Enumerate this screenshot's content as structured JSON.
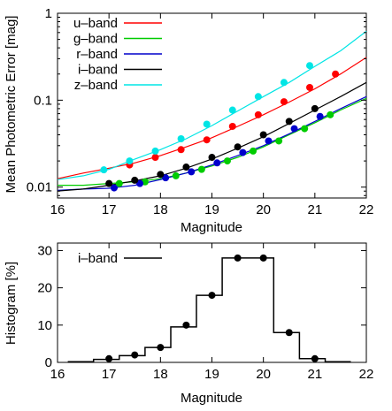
{
  "chart_data": [
    {
      "type": "line",
      "xlabel": "Magnitude",
      "ylabel": "Mean Photometric Error [mag]",
      "yscale": "log",
      "xlim": [
        16,
        22
      ],
      "ylim": [
        0.0075,
        1
      ],
      "xticks": [
        "16",
        "17",
        "18",
        "19",
        "20",
        "21",
        "22"
      ],
      "yticks": [
        {
          "value": 0.01,
          "label": "0.01"
        },
        {
          "value": 0.1,
          "label": "0.1"
        },
        {
          "value": 1,
          "label": "1"
        }
      ],
      "legend_position": "top-left",
      "series": [
        {
          "name": "u–band",
          "color": "#ff0000",
          "curve": [
            [
              16,
              0.0125
            ],
            [
              16.5,
              0.0145
            ],
            [
              17,
              0.0165
            ],
            [
              17.5,
              0.019
            ],
            [
              18,
              0.023
            ],
            [
              18.5,
              0.029
            ],
            [
              19,
              0.037
            ],
            [
              19.5,
              0.05
            ],
            [
              20,
              0.068
            ],
            [
              20.5,
              0.095
            ],
            [
              21,
              0.135
            ],
            [
              21.5,
              0.2
            ],
            [
              22,
              0.31
            ]
          ],
          "points": [
            [
              17.4,
              0.018
            ],
            [
              17.9,
              0.022
            ],
            [
              18.4,
              0.027
            ],
            [
              18.9,
              0.035
            ],
            [
              19.4,
              0.05
            ],
            [
              19.9,
              0.068
            ],
            [
              20.4,
              0.096
            ],
            [
              20.9,
              0.14
            ],
            [
              21.4,
              0.2
            ]
          ]
        },
        {
          "name": "g–band",
          "color": "#00cc00",
          "curve": [
            [
              16,
              0.0105
            ],
            [
              16.5,
              0.0105
            ],
            [
              17,
              0.011
            ],
            [
              17.5,
              0.0115
            ],
            [
              18,
              0.0125
            ],
            [
              18.5,
              0.0145
            ],
            [
              19,
              0.0175
            ],
            [
              19.5,
              0.022
            ],
            [
              20,
              0.029
            ],
            [
              20.5,
              0.04
            ],
            [
              21,
              0.055
            ],
            [
              21.5,
              0.077
            ],
            [
              22,
              0.105
            ]
          ],
          "points": [
            [
              17.2,
              0.011
            ],
            [
              17.7,
              0.0115
            ],
            [
              18.3,
              0.0135
            ],
            [
              18.8,
              0.016
            ],
            [
              19.3,
              0.02
            ],
            [
              19.8,
              0.026
            ],
            [
              20.3,
              0.034
            ],
            [
              20.8,
              0.047
            ],
            [
              21.3,
              0.068
            ]
          ]
        },
        {
          "name": "r–band",
          "color": "#0000cc",
          "curve": [
            [
              16,
              0.0092
            ],
            [
              16.5,
              0.0095
            ],
            [
              17,
              0.0097
            ],
            [
              17.5,
              0.0105
            ],
            [
              18,
              0.0122
            ],
            [
              18.5,
              0.0145
            ],
            [
              19,
              0.018
            ],
            [
              19.5,
              0.023
            ],
            [
              20,
              0.03
            ],
            [
              20.5,
              0.041
            ],
            [
              21,
              0.057
            ],
            [
              21.5,
              0.08
            ],
            [
              22,
              0.11
            ]
          ],
          "points": [
            [
              17.1,
              0.0098
            ],
            [
              17.6,
              0.011
            ],
            [
              18.1,
              0.0128
            ],
            [
              18.6,
              0.015
            ],
            [
              19.1,
              0.019
            ],
            [
              19.6,
              0.025
            ],
            [
              20.1,
              0.034
            ],
            [
              20.6,
              0.047
            ],
            [
              21.1,
              0.065
            ]
          ]
        },
        {
          "name": "i–band",
          "color": "#000000",
          "curve": [
            [
              16,
              0.009
            ],
            [
              16.5,
              0.0095
            ],
            [
              17,
              0.0105
            ],
            [
              17.5,
              0.0118
            ],
            [
              18,
              0.0135
            ],
            [
              18.5,
              0.0165
            ],
            [
              19,
              0.021
            ],
            [
              19.5,
              0.028
            ],
            [
              20,
              0.038
            ],
            [
              20.5,
              0.054
            ],
            [
              21,
              0.077
            ],
            [
              21.5,
              0.11
            ],
            [
              22,
              0.16
            ]
          ],
          "points": [
            [
              17,
              0.011
            ],
            [
              17.5,
              0.012
            ],
            [
              18,
              0.014
            ],
            [
              18.5,
              0.017
            ],
            [
              19,
              0.022
            ],
            [
              19.5,
              0.029
            ],
            [
              20,
              0.04
            ],
            [
              20.5,
              0.057
            ],
            [
              21,
              0.08
            ]
          ]
        },
        {
          "name": "z–band",
          "color": "#00e5e5",
          "curve": [
            [
              16,
              0.0122
            ],
            [
              16.5,
              0.0135
            ],
            [
              17,
              0.016
            ],
            [
              17.5,
              0.021
            ],
            [
              18,
              0.027
            ],
            [
              18.5,
              0.036
            ],
            [
              19,
              0.051
            ],
            [
              19.5,
              0.075
            ],
            [
              20,
              0.11
            ],
            [
              20.5,
              0.16
            ],
            [
              21,
              0.245
            ],
            [
              21.5,
              0.37
            ],
            [
              22,
              0.62
            ]
          ],
          "points": [
            [
              16.9,
              0.0158
            ],
            [
              17.4,
              0.02
            ],
            [
              17.9,
              0.026
            ],
            [
              18.4,
              0.036
            ],
            [
              18.9,
              0.053
            ],
            [
              19.4,
              0.077
            ],
            [
              19.9,
              0.11
            ],
            [
              20.4,
              0.16
            ],
            [
              20.9,
              0.25
            ]
          ]
        }
      ]
    },
    {
      "type": "bar",
      "style": "histogram-step",
      "xlabel": "Magnitude",
      "ylabel": "Histogram [%]",
      "xlim": [
        16,
        22
      ],
      "ylim": [
        0,
        32
      ],
      "xticks": [
        "16",
        "17",
        "18",
        "19",
        "20",
        "21",
        "22"
      ],
      "yticks": [
        "0",
        "10",
        "20",
        "30"
      ],
      "legend_position": "top-left",
      "series": [
        {
          "name": "i–band",
          "color": "#000000",
          "bin_edges": [
            16.2,
            16.7,
            17.2,
            17.7,
            18.2,
            18.7,
            19.2,
            19.7,
            20.2,
            20.7,
            21.2,
            21.7
          ],
          "values": [
            0.2,
            0.8,
            1.8,
            4,
            9.5,
            18,
            28,
            28,
            8,
            1,
            0.2
          ],
          "points": [
            [
              17,
              1
            ],
            [
              17.5,
              2
            ],
            [
              18,
              4
            ],
            [
              18.5,
              10
            ],
            [
              19,
              18
            ],
            [
              19.5,
              28
            ],
            [
              20,
              28
            ],
            [
              20.5,
              8
            ],
            [
              21,
              1
            ]
          ]
        }
      ]
    }
  ]
}
